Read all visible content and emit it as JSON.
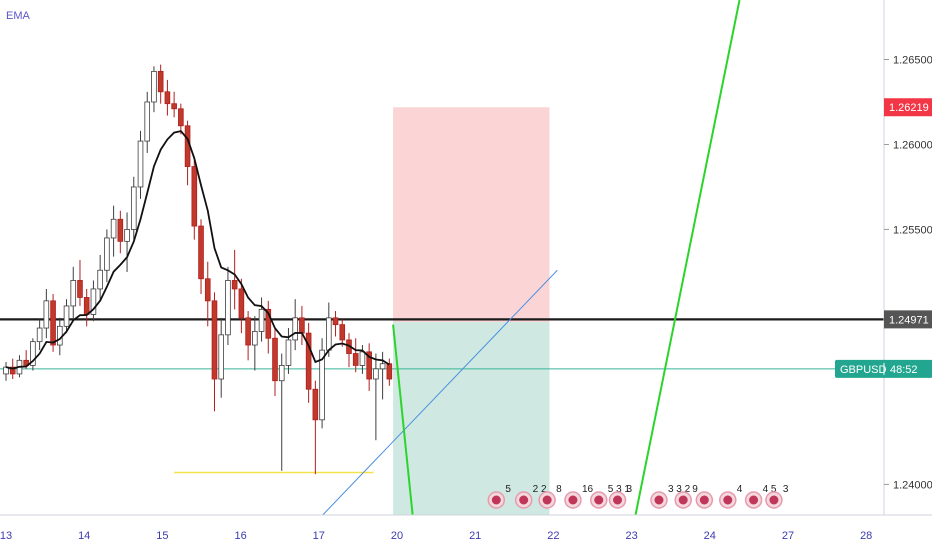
{
  "indicator": {
    "label": "EMA"
  },
  "chart_data": {
    "type": "candlestick",
    "symbol": "GBPUSD",
    "indicator": "EMA",
    "y_axis": {
      "ticks": [
        "1.26500",
        "1.26000",
        "1.25500",
        "1.24000"
      ],
      "tick_values": [
        1.265,
        1.26,
        1.255,
        1.24
      ],
      "range": [
        1.2382,
        1.2685
      ]
    },
    "x_axis": {
      "ticks": [
        "13",
        "14",
        "15",
        "16",
        "17",
        "20",
        "21",
        "22",
        "23",
        "24",
        "27",
        "28"
      ],
      "tick_slots": [
        0,
        10,
        20,
        30,
        40,
        50,
        60,
        70,
        80,
        90,
        100,
        110
      ]
    },
    "price_tags": [
      {
        "label": "1.26219",
        "value": 1.26219,
        "color": "#f23645"
      },
      {
        "label": "1.24971",
        "value": 1.24971,
        "color": "#555555"
      },
      {
        "label": "GBPUSD",
        "countdown": "48:52",
        "value": 1.2468,
        "color": "#22a68f"
      }
    ],
    "horizontal_lines": [
      {
        "name": "resistance",
        "value": 1.24971,
        "color": "#1b1b1b"
      },
      {
        "name": "current-price",
        "value": 1.2468,
        "color": "#37b59a"
      },
      {
        "name": "support",
        "value": 1.2407,
        "from": 21.5,
        "to": 47,
        "color": "#f5e14a"
      }
    ],
    "position": {
      "entry": 1.24955,
      "stop": 1.26219,
      "target": 1.2382,
      "from": 49.5,
      "to": 69.5,
      "risk_color": "#fbd5d5",
      "reward_color": "#cfe9e2"
    },
    "trend_lines": [
      {
        "name": "blue-trendline",
        "color": "#4a8fe0",
        "points": [
          [
            40.5,
            1.2382
          ],
          [
            70.5,
            1.2526
          ]
        ]
      },
      {
        "name": "green-line-down",
        "color": "#2bd42b",
        "points": [
          [
            49.5,
            1.2494
          ],
          [
            52.0,
            1.2382
          ]
        ]
      },
      {
        "name": "green-line-up",
        "color": "#2bd42b",
        "points": [
          [
            80.5,
            1.2382
          ],
          [
            93.8,
            1.2685
          ]
        ]
      }
    ],
    "events": [
      {
        "slot": 62.7,
        "count": "5"
      },
      {
        "slot": 66.2,
        "count": "2 2"
      },
      {
        "slot": 69.2,
        "count": "8"
      },
      {
        "slot": 72.5,
        "count": "16"
      },
      {
        "slot": 75.8,
        "count": "5 3 1"
      },
      {
        "slot": 78.2,
        "count": "3"
      },
      {
        "slot": 83.5,
        "count": "3 3 2"
      },
      {
        "slot": 86.6,
        "count": "9"
      },
      {
        "slot": 89.3,
        "count": ""
      },
      {
        "slot": 92.3,
        "count": "4"
      },
      {
        "slot": 95.6,
        "count": "4 5"
      },
      {
        "slot": 98.2,
        "count": "3"
      }
    ],
    "candles_ohlc": [
      [
        1.2465,
        1.2472,
        1.2461,
        1.2469
      ],
      [
        1.2469,
        1.2474,
        1.2462,
        1.2465
      ],
      [
        1.2465,
        1.2476,
        1.2463,
        1.2473
      ],
      [
        1.2473,
        1.2479,
        1.2468,
        1.247
      ],
      [
        1.247,
        1.2486,
        1.2467,
        1.2484
      ],
      [
        1.2484,
        1.2497,
        1.2479,
        1.2492
      ],
      [
        1.2492,
        1.2515,
        1.2486,
        1.2508
      ],
      [
        1.2508,
        1.2512,
        1.2478,
        1.2482
      ],
      [
        1.2482,
        1.2498,
        1.2476,
        1.2493
      ],
      [
        1.2493,
        1.2509,
        1.2489,
        1.2505
      ],
      [
        1.2505,
        1.2528,
        1.2497,
        1.252
      ],
      [
        1.252,
        1.2532,
        1.2505,
        1.251
      ],
      [
        1.251,
        1.2515,
        1.2493,
        1.25
      ],
      [
        1.25,
        1.252,
        1.2496,
        1.2515
      ],
      [
        1.2515,
        1.2535,
        1.2508,
        1.2526
      ],
      [
        1.2526,
        1.255,
        1.2519,
        1.2545
      ],
      [
        1.2545,
        1.2564,
        1.2534,
        1.2556
      ],
      [
        1.2556,
        1.2561,
        1.2536,
        1.2543
      ],
      [
        1.2543,
        1.256,
        1.2525,
        1.255
      ],
      [
        1.255,
        1.2581,
        1.2544,
        1.2575
      ],
      [
        1.2575,
        1.2608,
        1.2568,
        1.2602
      ],
      [
        1.2602,
        1.2631,
        1.2595,
        1.2625
      ],
      [
        1.2625,
        1.2646,
        1.2619,
        1.2643
      ],
      [
        1.2643,
        1.2647,
        1.2624,
        1.2631
      ],
      [
        1.2631,
        1.2638,
        1.2617,
        1.2624
      ],
      [
        1.2624,
        1.2631,
        1.2616,
        1.2621
      ],
      [
        1.2621,
        1.2624,
        1.2606,
        1.2611
      ],
      [
        1.2611,
        1.2614,
        1.2576,
        1.2587
      ],
      [
        1.2587,
        1.2593,
        1.2544,
        1.2552
      ],
      [
        1.2552,
        1.2556,
        1.2512,
        1.2521
      ],
      [
        1.2521,
        1.2531,
        1.2493,
        1.2508
      ],
      [
        1.2508,
        1.2513,
        1.2443,
        1.2462
      ],
      [
        1.2462,
        1.2498,
        1.2451,
        1.2488
      ],
      [
        1.2488,
        1.2528,
        1.2482,
        1.252
      ],
      [
        1.252,
        1.2538,
        1.2503,
        1.2515
      ],
      [
        1.2515,
        1.2521,
        1.2489,
        1.2498
      ],
      [
        1.2498,
        1.2502,
        1.2473,
        1.2482
      ],
      [
        1.2482,
        1.2499,
        1.2467,
        1.249
      ],
      [
        1.249,
        1.251,
        1.2484,
        1.2503
      ],
      [
        1.2503,
        1.2508,
        1.2477,
        1.2486
      ],
      [
        1.2486,
        1.2492,
        1.2452,
        1.2461
      ],
      [
        1.2461,
        1.2477,
        1.2408,
        1.247
      ],
      [
        1.247,
        1.2492,
        1.2465,
        1.2485
      ],
      [
        1.2485,
        1.2509,
        1.2479,
        1.2498
      ],
      [
        1.2498,
        1.2505,
        1.2482,
        1.2489
      ],
      [
        1.2489,
        1.2495,
        1.2448,
        1.2456
      ],
      [
        1.2456,
        1.2461,
        1.2406,
        1.2438
      ],
      [
        1.2438,
        1.2486,
        1.2433,
        1.2479
      ],
      [
        1.2479,
        1.2507,
        1.2475,
        1.2498
      ],
      [
        1.2498,
        1.2502,
        1.2487,
        1.2494
      ],
      [
        1.2494,
        1.2497,
        1.2481,
        1.2485
      ],
      [
        1.2485,
        1.2489,
        1.2469,
        1.2477
      ],
      [
        1.2477,
        1.2486,
        1.2466,
        1.247
      ],
      [
        1.247,
        1.2482,
        1.2465,
        1.2478
      ],
      [
        1.2478,
        1.2483,
        1.2455,
        1.2462
      ],
      [
        1.2462,
        1.2477,
        1.2426,
        1.2468
      ],
      [
        1.2468,
        1.2478,
        1.245,
        1.2471
      ],
      [
        1.2471,
        1.2474,
        1.2458,
        1.2462
      ]
    ],
    "ema_period_note": "EMA line drawn over candles"
  }
}
